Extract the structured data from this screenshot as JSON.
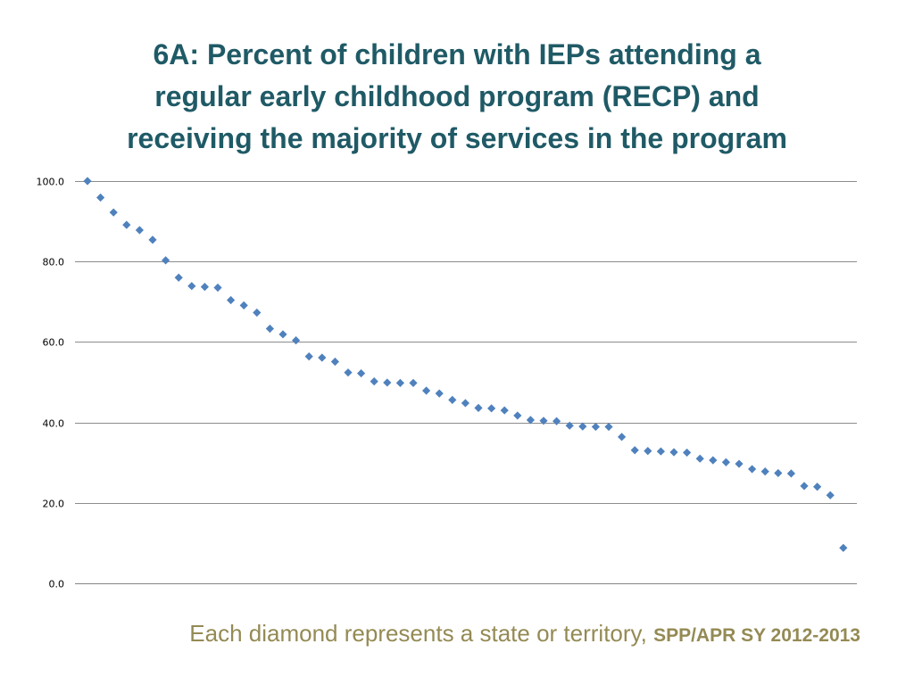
{
  "title_lines": [
    "6A: Percent of children with IEPs attending a",
    "regular early childhood program (RECP) and",
    "receiving the majority of services in the program"
  ],
  "caption": {
    "main": "Each diamond represents a state or territory, ",
    "source": "SPP/APR SY 2012-2013"
  },
  "colors": {
    "title": "#1f5a66",
    "caption": "#948a54",
    "marker": "#4f81bd",
    "gridline": "#8c8c8c"
  },
  "chart_data": {
    "type": "scatter",
    "marker": "diamond",
    "title": "6A: Percent of children with IEPs attending a regular early childhood program (RECP) and receiving the majority of services in the program",
    "xlabel": "",
    "ylabel": "",
    "ylim": [
      0,
      100
    ],
    "yticks": [
      0,
      20,
      40,
      60,
      80,
      100
    ],
    "ytick_labels": [
      "0.0",
      "20.0",
      "40.0",
      "60.0",
      "80.0",
      "100.0"
    ],
    "grid": true,
    "x_axis_labels": false,
    "values": [
      100.0,
      95.9,
      92.2,
      89.1,
      87.8,
      85.4,
      80.3,
      76.0,
      73.9,
      73.7,
      73.5,
      70.4,
      69.1,
      67.3,
      63.3,
      61.9,
      60.4,
      56.4,
      56.1,
      55.1,
      52.4,
      52.2,
      50.2,
      49.9,
      49.8,
      49.8,
      47.9,
      47.2,
      45.6,
      44.8,
      43.6,
      43.5,
      43.0,
      41.7,
      40.6,
      40.4,
      40.3,
      39.2,
      39.0,
      38.9,
      38.9,
      36.4,
      33.1,
      32.9,
      32.8,
      32.6,
      32.5,
      31.0,
      30.6,
      30.1,
      29.7,
      28.4,
      27.8,
      27.4,
      27.3,
      24.2,
      24.0,
      21.9,
      8.8
    ]
  }
}
